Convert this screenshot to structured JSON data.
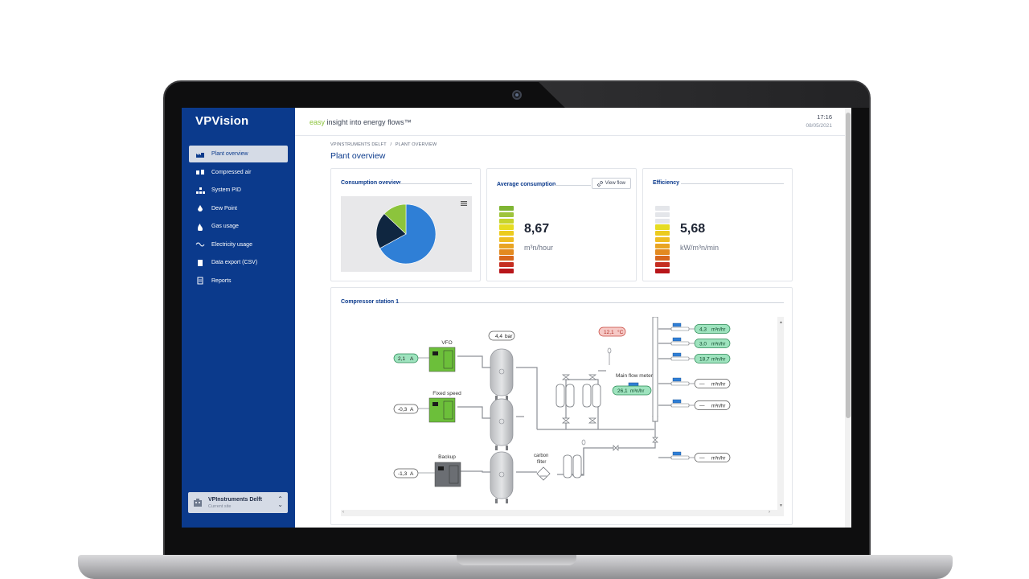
{
  "app": {
    "brand": "VPVision",
    "tagline_accent": "easy",
    "tagline_rest": " insight into energy flows™",
    "time": "17:16",
    "date": "08/05/2021"
  },
  "sidebar": {
    "items": [
      {
        "label": "Plant overview",
        "icon": "factory-icon",
        "active": true
      },
      {
        "label": "Compressed air",
        "icon": "compressor-icon",
        "active": false
      },
      {
        "label": "System PID",
        "icon": "hierarchy-icon",
        "active": false
      },
      {
        "label": "Dew Point",
        "icon": "droplet-icon",
        "active": false
      },
      {
        "label": "Gas usage",
        "icon": "flame-icon",
        "active": false
      },
      {
        "label": "Electricity usage",
        "icon": "wave-icon",
        "active": false
      },
      {
        "label": "Data export (CSV)",
        "icon": "file-icon",
        "active": false
      },
      {
        "label": "Reports",
        "icon": "report-icon",
        "active": false
      }
    ],
    "site": {
      "name": "VPInstruments Delft",
      "sub": "Current site"
    }
  },
  "page": {
    "breadcrumb_root": "VPINSTRUMENTS DELFT",
    "breadcrumb_sep": "/",
    "breadcrumb_current": "PLANT OVERVIEW",
    "title": "Plant overview"
  },
  "consumption": {
    "title": "Consumption oveview",
    "chart_data": {
      "type": "pie",
      "values": [
        67,
        20,
        13
      ],
      "colors": [
        "#2f7fd6",
        "#0f2640",
        "#8cc43c"
      ]
    }
  },
  "average": {
    "title": "Average consumption",
    "button": "View flow",
    "value": "8,67",
    "unit": "m³n/hour",
    "gauge_colors": [
      "#7fb533",
      "#9ec43c",
      "#c6d42c",
      "#e6dc22",
      "#eccb1e",
      "#efbd22",
      "#e9a423",
      "#e38a20",
      "#d7661d",
      "#c52d20",
      "#b8161a"
    ]
  },
  "efficiency": {
    "title": "Efficiency",
    "value": "5,68",
    "unit": "kW/m³n/min",
    "gauge_colors": [
      "#e4e6ea",
      "#e4e6ea",
      "#e4e6ea",
      "#e6dc22",
      "#eccb1e",
      "#efbd22",
      "#e9a423",
      "#e38a20",
      "#d7661d",
      "#c52d20",
      "#b8161a"
    ]
  },
  "station": {
    "title": "Compressor station 1",
    "compressors": [
      {
        "label": "VFO",
        "current": "2,1",
        "current_unit": "A",
        "color": "#6cbf3a"
      },
      {
        "label": "Fixed speed",
        "current": "-0,3",
        "current_unit": "A",
        "color": "#6cbf3a"
      },
      {
        "label": "Backup",
        "current": "-1,3",
        "current_unit": "A",
        "color": "#6b6e73"
      }
    ],
    "pressure": "4,4",
    "pressure_unit": "bar",
    "temperature": "12,1",
    "temperature_unit": "°C",
    "main_meter_label": "Main flow meter",
    "main_flow": "26,1",
    "flow_unit": "m³n/hr",
    "carbon_label_1": "carbon",
    "carbon_label_2": "filter",
    "branches": [
      {
        "value": "4,3",
        "unit": "m³n/hr",
        "active": true
      },
      {
        "value": "3,0",
        "unit": "m³n/hr",
        "active": true
      },
      {
        "value": "18,7",
        "unit": "m³n/hr",
        "active": true
      },
      {
        "value": "—",
        "unit": "m³n/hr",
        "active": false
      },
      {
        "value": "—",
        "unit": "m³n/hr",
        "active": false
      },
      {
        "value": "—",
        "unit": "m³n/hr",
        "active": false
      }
    ]
  }
}
